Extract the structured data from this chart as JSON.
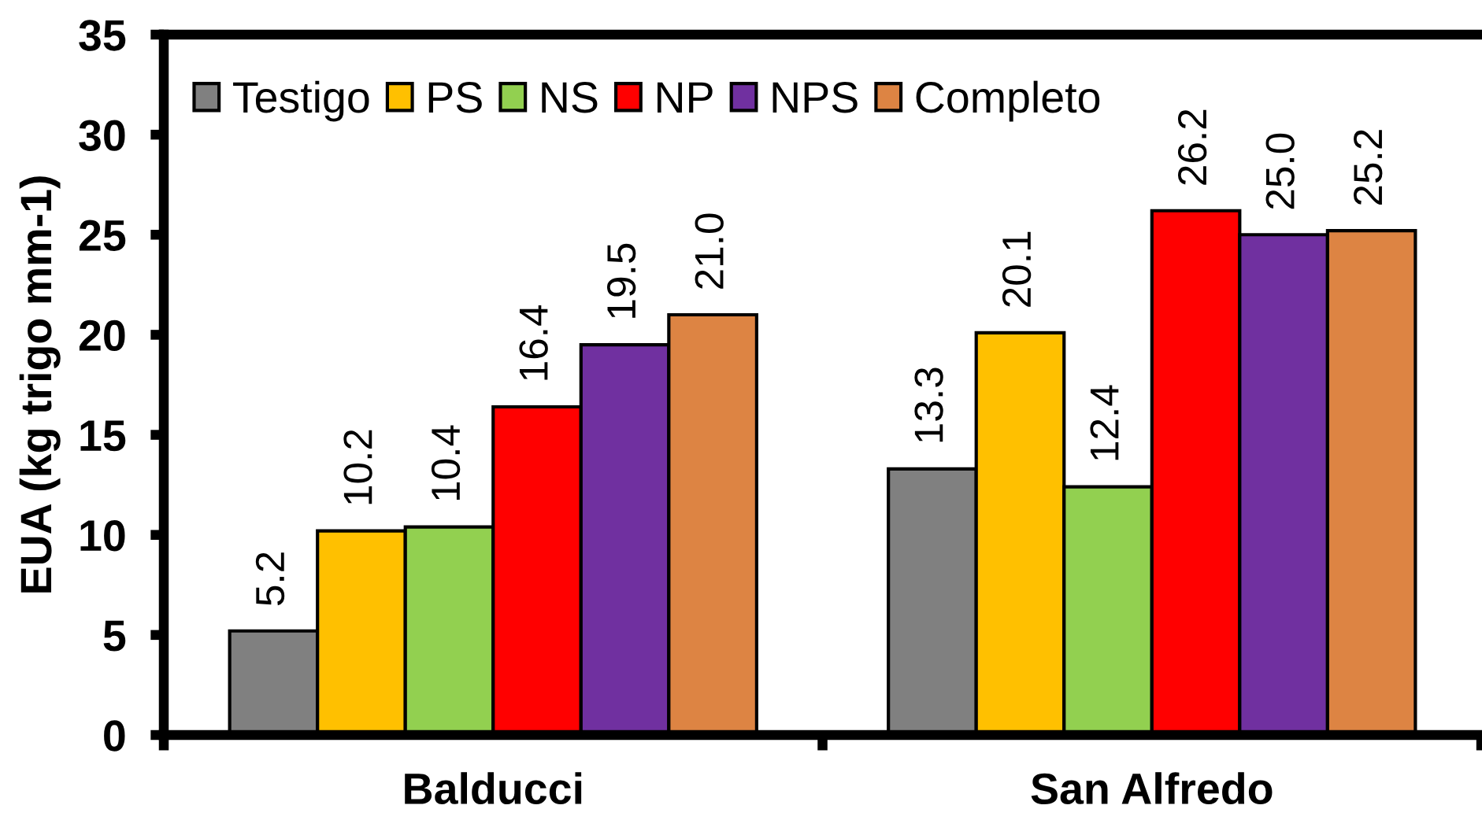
{
  "chart_data": {
    "type": "bar",
    "ylabel": "EUA (kg trigo mm-1)",
    "categories": [
      "Balducci",
      "San Alfredo"
    ],
    "series": [
      {
        "name": "Testigo",
        "color": "#808080",
        "values": [
          5.2,
          13.3
        ],
        "value_labels": [
          "5.2",
          "13.3"
        ]
      },
      {
        "name": "PS",
        "color": "#ffc000",
        "values": [
          10.2,
          20.1
        ],
        "value_labels": [
          "10.2",
          "20.1"
        ]
      },
      {
        "name": "NS",
        "color": "#92d050",
        "values": [
          10.4,
          12.4
        ],
        "value_labels": [
          "10.4",
          "12.4"
        ]
      },
      {
        "name": "NP",
        "color": "#ff0000",
        "values": [
          16.4,
          26.2
        ],
        "value_labels": [
          "16.4",
          "26.2"
        ]
      },
      {
        "name": "NPS",
        "color": "#7030a0",
        "values": [
          19.5,
          25.0
        ],
        "value_labels": [
          "19.5",
          "25.0"
        ]
      },
      {
        "name": "Completo",
        "color": "#dd8443",
        "values": [
          21.0,
          25.2
        ],
        "value_labels": [
          "21.0",
          "25.2"
        ]
      }
    ],
    "ylim": [
      0,
      35
    ],
    "yticks": [
      0,
      5,
      10,
      15,
      20,
      25,
      30,
      35
    ],
    "legend": "top left",
    "grid": false
  }
}
